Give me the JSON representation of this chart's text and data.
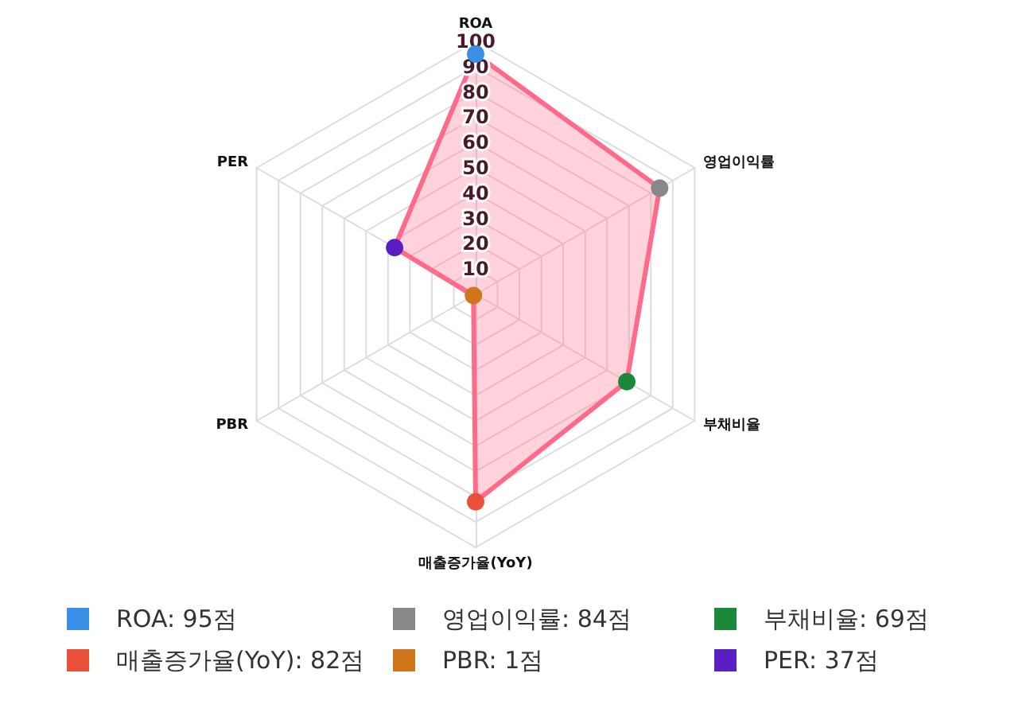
{
  "chart_data": {
    "type": "radar",
    "categories": [
      "ROA",
      "영업이익률",
      "부채비율",
      "매출증가율(YoY)",
      "PBR",
      "PER"
    ],
    "series": [
      {
        "color": "#ff6b8a",
        "values": [
          95,
          84,
          69,
          82,
          1,
          37
        ],
        "colors": [
          "#3a8ee6",
          "#888888",
          "#1a8a3a",
          "#e8503a",
          "#d0761a",
          "#5a1fc4"
        ]
      }
    ],
    "annotations": [
      "ROA: 95점",
      "영업이익률: 84점",
      "부채비율: 69점",
      "매출증가율(YoY): 82점",
      "PBR: 1점",
      "PER: 37점"
    ],
    "ylim": [
      0,
      100
    ],
    "yticks": [
      10,
      20,
      30,
      40,
      50,
      60,
      70,
      80,
      90,
      100
    ],
    "grid": true,
    "marker": "circle"
  }
}
